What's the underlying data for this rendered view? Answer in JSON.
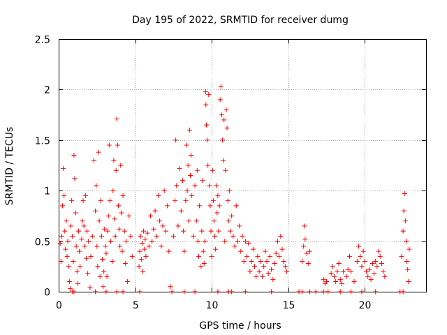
{
  "chart_data": {
    "type": "scatter",
    "title": "Day 195 of 2022, SRMTID for receiver dumg",
    "xlabel": "GPS time / hours",
    "ylabel": "SRMTID / TECUs",
    "xlim": [
      0,
      24
    ],
    "ylim": [
      0,
      2.5
    ],
    "x_ticks": [
      0,
      5,
      10,
      15,
      20
    ],
    "x_tick_labels": [
      "0",
      "5",
      "10",
      "15",
      "20"
    ],
    "y_ticks": [
      0,
      0.5,
      1,
      1.5,
      2,
      2.5
    ],
    "y_tick_labels": [
      "0",
      "0.5",
      "1",
      "1.5",
      "2",
      "2.5"
    ],
    "grid": true,
    "marker": "plus",
    "color": "#ff0000",
    "series": [
      {
        "name": "SRMTID",
        "points": [
          [
            0.1,
            0.48
          ],
          [
            0.15,
            0.3
          ],
          [
            0.2,
            0.55
          ],
          [
            0.25,
            0.85
          ],
          [
            0.3,
            1.22
          ],
          [
            0.35,
            0.95
          ],
          [
            0.4,
            0.6
          ],
          [
            0.45,
            0.42
          ],
          [
            0.5,
            0.7
          ],
          [
            0.55,
            0.35
          ],
          [
            0.6,
            0.5
          ],
          [
            0.65,
            0.25
          ],
          [
            0.7,
            0.1
          ],
          [
            0.75,
            0.03
          ],
          [
            0.8,
            0.65
          ],
          [
            0.85,
            0.9
          ],
          [
            0.9,
            0.55
          ],
          [
            0.95,
            0.3
          ],
          [
            1.0,
            1.35
          ],
          [
            1.05,
            1.12
          ],
          [
            1.1,
            0.78
          ],
          [
            1.15,
            0.45
          ],
          [
            1.2,
            0.2
          ],
          [
            1.25,
            0.08
          ],
          [
            1.3,
            0.6
          ],
          [
            1.35,
            0.4
          ],
          [
            1.4,
            0.25
          ],
          [
            1.5,
            0.52
          ],
          [
            1.55,
            0.7
          ],
          [
            1.6,
            0.9
          ],
          [
            1.65,
            0.65
          ],
          [
            1.7,
            0.45
          ],
          [
            1.75,
            0.95
          ],
          [
            1.8,
            0.33
          ],
          [
            1.85,
            0.6
          ],
          [
            1.9,
            0.18
          ],
          [
            1.95,
            0.5
          ],
          [
            2.05,
            0.04
          ],
          [
            2.1,
            0.35
          ],
          [
            2.2,
            0.55
          ],
          [
            2.3,
            1.3
          ],
          [
            2.4,
            0.8
          ],
          [
            2.45,
            1.05
          ],
          [
            2.5,
            0.45
          ],
          [
            2.55,
            0.25
          ],
          [
            2.6,
            1.38
          ],
          [
            2.65,
            0.7
          ],
          [
            2.7,
            0.15
          ],
          [
            2.75,
            0.9
          ],
          [
            2.8,
            0.55
          ],
          [
            2.85,
            0.32
          ],
          [
            2.9,
            0.05
          ],
          [
            2.95,
            0.2
          ],
          [
            3.0,
            0.62
          ],
          [
            3.05,
            0.45
          ],
          [
            3.1,
            0.38
          ],
          [
            3.15,
            0.15
          ],
          [
            3.2,
            0.6
          ],
          [
            3.25,
            0.75
          ],
          [
            3.3,
            1.45
          ],
          [
            3.35,
            0.9
          ],
          [
            3.4,
            0.5
          ],
          [
            3.5,
            0.3
          ],
          [
            3.55,
            1.0
          ],
          [
            3.6,
            1.3
          ],
          [
            3.65,
            0.72
          ],
          [
            3.7,
            0.55
          ],
          [
            3.75,
            1.2
          ],
          [
            3.8,
            1.71
          ],
          [
            3.85,
            1.45
          ],
          [
            3.9,
            0.85
          ],
          [
            3.95,
            0.62
          ],
          [
            4.0,
            0.45
          ],
          [
            4.05,
            1.25
          ],
          [
            4.1,
            0.78
          ],
          [
            4.15,
            0.4
          ],
          [
            4.2,
            0.95
          ],
          [
            4.3,
            0.6
          ],
          [
            4.35,
            0.28
          ],
          [
            4.4,
            0.5
          ],
          [
            4.5,
            0.1
          ],
          [
            4.6,
            0.75
          ],
          [
            4.7,
            0.55
          ],
          [
            4.8,
            0.35
          ],
          [
            5.25,
            0.25
          ],
          [
            5.3,
            0.4
          ],
          [
            5.35,
            0.55
          ],
          [
            5.4,
            0.32
          ],
          [
            5.45,
            0.48
          ],
          [
            5.5,
            0.2
          ],
          [
            5.55,
            0.6
          ],
          [
            5.6,
            0.42
          ],
          [
            5.65,
            0.52
          ],
          [
            5.7,
            0.35
          ],
          [
            5.8,
            0.58
          ],
          [
            5.9,
            0.45
          ],
          [
            6.0,
            0.75
          ],
          [
            6.1,
            0.5
          ],
          [
            6.2,
            0.62
          ],
          [
            6.3,
            0.8
          ],
          [
            6.4,
            0.55
          ],
          [
            6.5,
            0.95
          ],
          [
            6.6,
            0.7
          ],
          [
            6.7,
            0.45
          ],
          [
            6.8,
            0.65
          ],
          [
            6.9,
            1.0
          ],
          [
            7.0,
            0.6
          ],
          [
            7.1,
            0.85
          ],
          [
            7.2,
            0.4
          ],
          [
            7.3,
            0.05
          ],
          [
            7.5,
            0.55
          ],
          [
            7.6,
            0.9
          ],
          [
            7.65,
            1.5
          ],
          [
            7.7,
            1.05
          ],
          [
            7.8,
            0.65
          ],
          [
            7.9,
            1.22
          ],
          [
            8.0,
            0.8
          ],
          [
            8.1,
            1.1
          ],
          [
            8.15,
            0.6
          ],
          [
            8.2,
            0.4
          ],
          [
            8.3,
            0.9
          ],
          [
            8.35,
            1.45
          ],
          [
            8.4,
            1.0
          ],
          [
            8.45,
            1.25
          ],
          [
            8.5,
            0.7
          ],
          [
            8.55,
            1.6
          ],
          [
            8.6,
            1.15
          ],
          [
            8.65,
            1.35
          ],
          [
            8.7,
            0.95
          ],
          [
            8.8,
            0.55
          ],
          [
            8.9,
            1.05
          ],
          [
            9.0,
            0.7
          ],
          [
            9.05,
            1.2
          ],
          [
            9.1,
            0.5
          ],
          [
            9.15,
            0.35
          ],
          [
            9.2,
            0.85
          ],
          [
            9.3,
            0.25
          ],
          [
            9.35,
            0.6
          ],
          [
            9.4,
            1.1
          ],
          [
            9.45,
            0.4
          ],
          [
            9.5,
            0.28
          ],
          [
            9.55,
            0.5
          ],
          [
            9.6,
            1.98
          ],
          [
            9.62,
            1.85
          ],
          [
            9.65,
            1.65
          ],
          [
            9.7,
            1.5
          ],
          [
            9.75,
            1.25
          ],
          [
            9.8,
            1.95
          ],
          [
            9.85,
            1.05
          ],
          [
            9.9,
            0.85
          ],
          [
            9.95,
            0.6
          ],
          [
            10.0,
            0.35
          ],
          [
            10.05,
            1.2
          ],
          [
            10.1,
            0.9
          ],
          [
            10.15,
            0.7
          ],
          [
            10.2,
            0.55
          ],
          [
            10.25,
            0.42
          ],
          [
            10.3,
            1.05
          ],
          [
            10.35,
            0.78
          ],
          [
            10.4,
            0.95
          ],
          [
            10.45,
            0.6
          ],
          [
            10.5,
            0.85
          ],
          [
            10.55,
            1.9
          ],
          [
            10.6,
            2.03
          ],
          [
            10.65,
            1.75
          ],
          [
            10.7,
            1.5
          ],
          [
            10.75,
            1.3
          ],
          [
            10.8,
            1.7
          ],
          [
            10.85,
            0.5
          ],
          [
            10.9,
            1.2
          ],
          [
            10.95,
            1.8
          ],
          [
            11.0,
            1.62
          ],
          [
            11.05,
            0.9
          ],
          [
            11.1,
            0.7
          ],
          [
            11.15,
            1.0
          ],
          [
            11.2,
            0.6
          ],
          [
            11.3,
            0.75
          ],
          [
            11.4,
            0.55
          ],
          [
            11.5,
            0.45
          ],
          [
            11.6,
            0.85
          ],
          [
            11.7,
            0.5
          ],
          [
            11.8,
            0.65
          ],
          [
            11.9,
            0.4
          ],
          [
            12.0,
            0.55
          ],
          [
            12.1,
            0.3
          ],
          [
            12.2,
            0.5
          ],
          [
            12.3,
            0.35
          ],
          [
            12.4,
            0.48
          ],
          [
            12.5,
            0.2
          ],
          [
            12.6,
            0.3
          ],
          [
            12.7,
            0.42
          ],
          [
            12.8,
            0.25
          ],
          [
            12.9,
            0.15
          ],
          [
            13.0,
            0.35
          ],
          [
            13.1,
            0.2
          ],
          [
            13.2,
            0.3
          ],
          [
            13.3,
            0.15
          ],
          [
            13.4,
            0.25
          ],
          [
            13.5,
            0.4
          ],
          [
            13.6,
            0.3
          ],
          [
            13.7,
            0.18
          ],
          [
            13.8,
            0.35
          ],
          [
            13.9,
            0.22
          ],
          [
            14.0,
            0.12
          ],
          [
            14.1,
            0.28
          ],
          [
            14.2,
            0.38
          ],
          [
            14.3,
            0.5
          ],
          [
            14.4,
            0.35
          ],
          [
            14.5,
            0.55
          ],
          [
            14.6,
            0.42
          ],
          [
            14.7,
            0.3
          ],
          [
            14.8,
            0.25
          ],
          [
            14.9,
            0.2
          ],
          [
            15.9,
            0.3
          ],
          [
            16.0,
            0.45
          ],
          [
            16.05,
            0.65
          ],
          [
            16.1,
            0.52
          ],
          [
            16.2,
            0.38
          ],
          [
            16.3,
            0.28
          ],
          [
            16.4,
            0.4
          ],
          [
            17.3,
            0.12
          ],
          [
            17.4,
            0.08
          ],
          [
            17.5,
            0.1
          ],
          [
            17.8,
            0.18
          ],
          [
            17.9,
            0.25
          ],
          [
            18.0,
            0.15
          ],
          [
            18.1,
            0.1
          ],
          [
            18.2,
            0.2
          ],
          [
            18.3,
            0.28
          ],
          [
            18.4,
            0.12
          ],
          [
            18.5,
            0.08
          ],
          [
            18.6,
            0.2
          ],
          [
            18.8,
            0.15
          ],
          [
            18.9,
            0.22
          ],
          [
            19.0,
            0.35
          ],
          [
            19.1,
            0.2
          ],
          [
            19.3,
            0.1
          ],
          [
            19.5,
            0.3
          ],
          [
            19.6,
            0.45
          ],
          [
            19.7,
            0.35
          ],
          [
            19.8,
            0.25
          ],
          [
            19.9,
            0.4
          ],
          [
            20.0,
            0.3
          ],
          [
            20.1,
            0.2
          ],
          [
            20.2,
            0.15
          ],
          [
            20.3,
            0.22
          ],
          [
            20.4,
            0.12
          ],
          [
            20.5,
            0.28
          ],
          [
            20.6,
            0.18
          ],
          [
            20.7,
            0.3
          ],
          [
            20.8,
            0.25
          ],
          [
            20.9,
            0.4
          ],
          [
            21.0,
            0.35
          ],
          [
            21.1,
            0.28
          ],
          [
            21.2,
            0.2
          ],
          [
            21.3,
            0.15
          ],
          [
            22.4,
            0.35
          ],
          [
            22.5,
            0.6
          ],
          [
            22.55,
            0.8
          ],
          [
            22.6,
            0.97
          ],
          [
            22.65,
            0.7
          ],
          [
            22.7,
            0.5
          ],
          [
            22.75,
            0.3
          ],
          [
            22.8,
            0.22
          ],
          [
            22.85,
            0.1
          ],
          [
            22.9,
            0.42
          ]
        ],
        "zero_points": [
          0.9,
          1.0,
          2.4,
          3.1,
          3.8,
          4.2,
          5.3,
          7.4,
          8.2,
          8.9,
          10.4,
          11.1,
          11.3,
          12.2,
          13.9,
          15.7,
          15.9,
          16.4,
          16.8,
          17.3,
          17.6,
          18.4,
          19.1,
          19.8,
          20.7,
          22.3,
          22.5
        ]
      }
    ]
  }
}
